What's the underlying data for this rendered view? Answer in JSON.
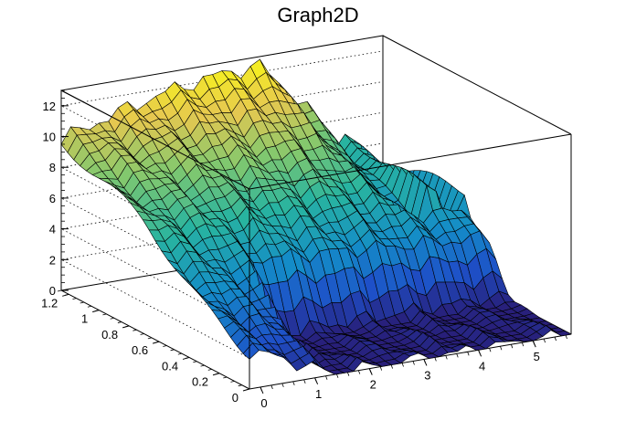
{
  "chart_data": {
    "type": "surface",
    "title": "Graph2D",
    "xlabel": "",
    "ylabel": "",
    "zlabel": "",
    "xlim": [
      -0.2,
      5.7
    ],
    "ylim": [
      0,
      1.25
    ],
    "zlim": [
      0,
      13
    ],
    "x_ticks": [
      "0",
      "1",
      "2",
      "3",
      "4",
      "5"
    ],
    "y_ticks": [
      "0",
      "0.2",
      "0.4",
      "0.6",
      "0.8",
      "1",
      "1.2"
    ],
    "z_ticks": [
      "0",
      "2",
      "4",
      "6",
      "8",
      "10",
      "12"
    ],
    "x_tick_values": [
      0,
      1,
      2,
      3,
      4,
      5
    ],
    "y_tick_values": [
      0,
      0.2,
      0.4,
      0.6,
      0.8,
      1.0,
      1.2
    ],
    "z_tick_values": [
      0,
      2,
      4,
      6,
      8,
      10,
      12
    ],
    "colormap": "viridis-like (dark blue to yellow)",
    "grid": true,
    "surface_description_points": [
      {
        "x": 0,
        "y": 1.2,
        "z": 10
      },
      {
        "x": 3,
        "y": 1.2,
        "z": 13
      },
      {
        "x": 4,
        "y": 1.2,
        "z": 11
      },
      {
        "x": 5,
        "y": 1.2,
        "z": 6
      },
      {
        "x": 5.5,
        "y": 1.2,
        "z": 4
      },
      {
        "x": 0,
        "y": 0.6,
        "z": 7
      },
      {
        "x": 0,
        "y": 0,
        "z": 1
      },
      {
        "x": 2,
        "y": 0.6,
        "z": 6
      },
      {
        "x": 4,
        "y": 0.6,
        "z": 4
      },
      {
        "x": 2,
        "y": 0,
        "z": 0
      },
      {
        "x": 5.5,
        "y": 0,
        "z": 0
      }
    ]
  }
}
